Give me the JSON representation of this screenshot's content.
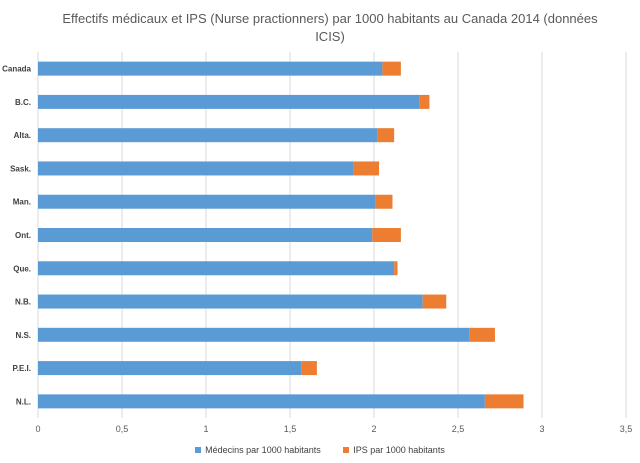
{
  "chart_data": {
    "type": "bar",
    "orientation": "horizontal",
    "stacked": true,
    "title": "Effectifs médicaux et IPS (Nurse practionners) par 1000 habitants au Canada 2014 (données ICIS)",
    "categories": [
      "Canada",
      "B.C.",
      "Alta.",
      "Sask.",
      "Man.",
      "Ont.",
      "Que.",
      "N.B.",
      "N.S.",
      "P.E.I.",
      "N.L."
    ],
    "series": [
      {
        "name": "Médecins par 1000 habitants",
        "color": "#5B9BD5",
        "values": [
          2.05,
          2.27,
          2.02,
          1.88,
          2.01,
          1.99,
          2.12,
          2.29,
          2.57,
          1.57,
          2.66
        ]
      },
      {
        "name": "IPS par 1000 habitants",
        "color": "#ED7D31",
        "values": [
          0.11,
          0.06,
          0.1,
          0.15,
          0.1,
          0.17,
          0.02,
          0.14,
          0.15,
          0.09,
          0.23
        ]
      }
    ],
    "xlim": [
      0,
      3.5
    ],
    "xticks": [
      "0",
      "0,5",
      "1",
      "1,5",
      "2",
      "2,5",
      "3",
      "3,5"
    ],
    "xtick_values": [
      0,
      0.5,
      1,
      1.5,
      2,
      2.5,
      3,
      3.5
    ],
    "grid": "vertical",
    "legend_position": "bottom"
  }
}
